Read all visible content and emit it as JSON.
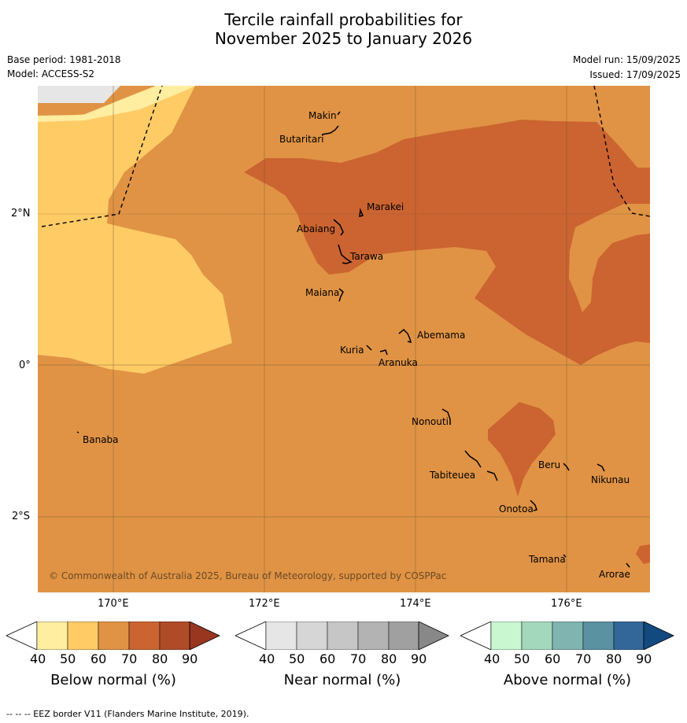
{
  "header": {
    "title_line1": "Tercile rainfall probabilities for",
    "title_line2": "November 2025 to January 2026",
    "base_period": "Base period: 1981-2018",
    "model": "Model: ACCESS-S2",
    "model_run": "Model run: 15/09/2025",
    "issued": "Issued: 17/09/2025"
  },
  "map": {
    "lat_labels": [
      "2°N",
      "0°",
      "2°S"
    ],
    "lon_labels": [
      "170°E",
      "172°E",
      "174°E",
      "176°E"
    ],
    "places": [
      "Makin",
      "Butaritari",
      "Marakei",
      "Abaiang",
      "Tarawa",
      "Maiana",
      "Abemama",
      "Kuria",
      "Aranuka",
      "Nonouti",
      "Banaba",
      "Beru",
      "Nikunau",
      "Tabiteuea",
      "Onotoa",
      "Tamana",
      "Arorae"
    ],
    "copyright": "© Commonwealth of Australia 2025, Bureau of Meteorology, supported by COSPPac",
    "colors": {
      "below_50_60": "#fecb65",
      "below_60_70": "#e09344",
      "below_70_80": "#cb6431",
      "below_40_50": "#ffeda0",
      "no_data": "#e6e6e6",
      "eez_line": "#000000"
    }
  },
  "legends": [
    {
      "title": "Below normal (%)",
      "ticks": [
        "40",
        "50",
        "60",
        "70",
        "80",
        "90"
      ],
      "colors": [
        "#ffffff",
        "#ffeda0",
        "#fecb65",
        "#e09344",
        "#cb6431",
        "#b04b27",
        "#98361f"
      ]
    },
    {
      "title": "Near normal (%)",
      "ticks": [
        "40",
        "50",
        "60",
        "70",
        "80",
        "90"
      ],
      "colors": [
        "#ffffff",
        "#e6e6e6",
        "#d6d6d6",
        "#c6c6c6",
        "#b3b3b3",
        "#a0a0a0",
        "#888888"
      ]
    },
    {
      "title": "Above normal (%)",
      "ticks": [
        "40",
        "50",
        "60",
        "70",
        "80",
        "90"
      ],
      "colors": [
        "#ffffff",
        "#c8f7d0",
        "#a4d8bd",
        "#80b4b0",
        "#5a92a2",
        "#336799",
        "#124a80"
      ]
    }
  ],
  "footnote": "--  --  -- EEZ border V11 (Flanders Marine Institute, 2019)."
}
